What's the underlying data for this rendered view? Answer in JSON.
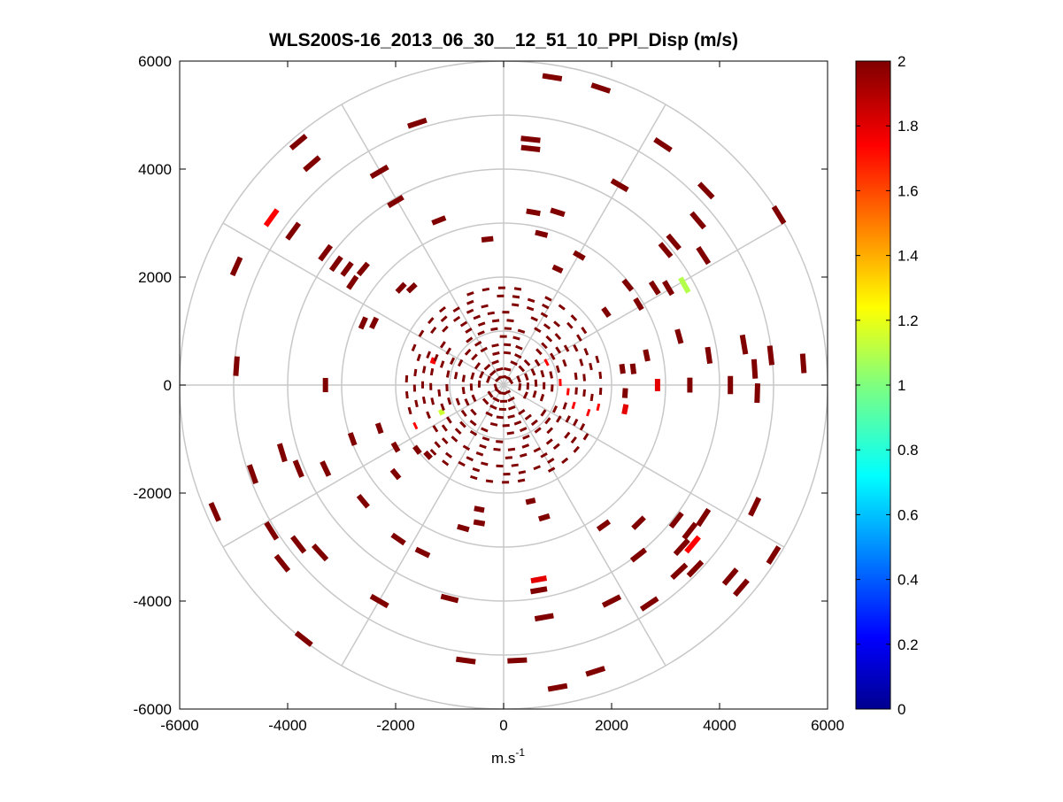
{
  "chart_data": {
    "type": "scatter",
    "subtype": "polar-ppi",
    "title": "WLS200S-16_2013_06_30__12_51_10_PPI_Disp (m/s)",
    "xlabel": "m.s",
    "xlabel_sup": "-1",
    "ylabel": "",
    "xlim": [
      -6000,
      6000
    ],
    "ylim": [
      -6000,
      6000
    ],
    "xticks": [
      "-6000",
      "-4000",
      "-2000",
      "0",
      "2000",
      "4000",
      "6000"
    ],
    "yticks": [
      "6000",
      "4000",
      "2000",
      "0",
      "-2000",
      "-4000",
      "-6000"
    ],
    "range_rings": [
      1000,
      2000,
      3000,
      4000,
      5000,
      6000
    ],
    "spokes_deg": [
      0,
      30,
      60,
      90,
      120,
      150,
      180,
      210,
      240,
      270,
      300,
      330
    ],
    "grid": true,
    "colorbar": {
      "min": 0,
      "max": 2,
      "colormap": "jet",
      "ticks": [
        "2",
        "1.8",
        "1.6",
        "1.4",
        "1.2",
        "1",
        "0.8",
        "0.6",
        "0.4",
        "0.2",
        "0"
      ]
    },
    "points": [
      {
        "x": 900,
        "y": 5700,
        "v": 2
      },
      {
        "x": 1800,
        "y": 5500,
        "v": 2
      },
      {
        "x": -1600,
        "y": 4850,
        "v": 2
      },
      {
        "x": 500,
        "y": 4550,
        "v": 2
      },
      {
        "x": 500,
        "y": 4380,
        "v": 2
      },
      {
        "x": 2950,
        "y": 4450,
        "v": 2
      },
      {
        "x": -3800,
        "y": 4500,
        "v": 2
      },
      {
        "x": -3550,
        "y": 4100,
        "v": 2
      },
      {
        "x": -2300,
        "y": 3950,
        "v": 2
      },
      {
        "x": 2150,
        "y": 3700,
        "v": 2
      },
      {
        "x": 3750,
        "y": 3600,
        "v": 2
      },
      {
        "x": -2000,
        "y": 3400,
        "v": 2
      },
      {
        "x": 550,
        "y": 3200,
        "v": 2
      },
      {
        "x": 1000,
        "y": 3200,
        "v": 2
      },
      {
        "x": -1200,
        "y": 3050,
        "v": 2
      },
      {
        "x": 3600,
        "y": 3050,
        "v": 2
      },
      {
        "x": 5100,
        "y": 3150,
        "v": 2
      },
      {
        "x": -4300,
        "y": 3100,
        "v": 1.75
      },
      {
        "x": -3900,
        "y": 2850,
        "v": 2
      },
      {
        "x": -300,
        "y": 2700,
        "v": 2
      },
      {
        "x": 700,
        "y": 2800,
        "v": 2
      },
      {
        "x": 3150,
        "y": 2650,
        "v": 2
      },
      {
        "x": 3000,
        "y": 2500,
        "v": 2
      },
      {
        "x": 3700,
        "y": 2400,
        "v": 2
      },
      {
        "x": -3300,
        "y": 2450,
        "v": 2
      },
      {
        "x": -4950,
        "y": 2200,
        "v": 2
      },
      {
        "x": -3100,
        "y": 2250,
        "v": 2
      },
      {
        "x": -2900,
        "y": 2150,
        "v": 2
      },
      {
        "x": -2600,
        "y": 2150,
        "v": 2
      },
      {
        "x": -2800,
        "y": 1900,
        "v": 2
      },
      {
        "x": -1900,
        "y": 1800,
        "v": 2
      },
      {
        "x": -1700,
        "y": 1800,
        "v": 2
      },
      {
        "x": 1400,
        "y": 2400,
        "v": 2
      },
      {
        "x": 1000,
        "y": 2150,
        "v": 2
      },
      {
        "x": 2300,
        "y": 1850,
        "v": 2
      },
      {
        "x": 2800,
        "y": 1800,
        "v": 2
      },
      {
        "x": 3350,
        "y": 1850,
        "v": 1.1
      },
      {
        "x": 3050,
        "y": 1800,
        "v": 2
      },
      {
        "x": 2500,
        "y": 1500,
        "v": 2
      },
      {
        "x": 1900,
        "y": 1350,
        "v": 2
      },
      {
        "x": -2600,
        "y": 1150,
        "v": 2
      },
      {
        "x": -2400,
        "y": 1150,
        "v": 2
      },
      {
        "x": 3250,
        "y": 900,
        "v": 2
      },
      {
        "x": 4450,
        "y": 750,
        "v": 2
      },
      {
        "x": 4950,
        "y": 550,
        "v": 2
      },
      {
        "x": 2650,
        "y": 550,
        "v": 2
      },
      {
        "x": 3800,
        "y": 550,
        "v": 2
      },
      {
        "x": -4950,
        "y": 350,
        "v": 2
      },
      {
        "x": 5550,
        "y": 400,
        "v": 2
      },
      {
        "x": 4650,
        "y": 300,
        "v": 2
      },
      {
        "x": 2200,
        "y": 300,
        "v": 2
      },
      {
        "x": 2400,
        "y": 300,
        "v": 2
      },
      {
        "x": 3450,
        "y": 0,
        "v": 2
      },
      {
        "x": 4200,
        "y": 0,
        "v": 2
      },
      {
        "x": 2850,
        "y": 0,
        "v": 1.8
      },
      {
        "x": 2250,
        "y": -150,
        "v": 2
      },
      {
        "x": 4700,
        "y": -150,
        "v": 2
      },
      {
        "x": 2250,
        "y": -450,
        "v": 1.8
      },
      {
        "x": -3300,
        "y": 0,
        "v": 2
      },
      {
        "x": -2300,
        "y": -800,
        "v": 2
      },
      {
        "x": -2800,
        "y": -1000,
        "v": 2
      },
      {
        "x": -2000,
        "y": -1150,
        "v": 2
      },
      {
        "x": -1600,
        "y": -1200,
        "v": 2
      },
      {
        "x": -1400,
        "y": -1300,
        "v": 2
      },
      {
        "x": -4100,
        "y": -1250,
        "v": 2
      },
      {
        "x": -3800,
        "y": -1550,
        "v": 2
      },
      {
        "x": -3300,
        "y": -1550,
        "v": 2
      },
      {
        "x": -4650,
        "y": -1650,
        "v": 2
      },
      {
        "x": -2000,
        "y": -1650,
        "v": 2
      },
      {
        "x": -2600,
        "y": -2150,
        "v": 2
      },
      {
        "x": -5350,
        "y": -2350,
        "v": 2
      },
      {
        "x": -4300,
        "y": -2700,
        "v": 2
      },
      {
        "x": -3800,
        "y": -2950,
        "v": 2
      },
      {
        "x": -4100,
        "y": -3300,
        "v": 2
      },
      {
        "x": -3400,
        "y": -3100,
        "v": 2
      },
      {
        "x": -1950,
        "y": -2850,
        "v": 2
      },
      {
        "x": -1500,
        "y": -3100,
        "v": 2
      },
      {
        "x": -750,
        "y": -2650,
        "v": 2
      },
      {
        "x": -450,
        "y": -2300,
        "v": 2
      },
      {
        "x": -450,
        "y": -2550,
        "v": 2
      },
      {
        "x": 500,
        "y": -2150,
        "v": 2
      },
      {
        "x": 750,
        "y": -2450,
        "v": 2
      },
      {
        "x": 1850,
        "y": -2600,
        "v": 2
      },
      {
        "x": 2500,
        "y": -2550,
        "v": 2
      },
      {
        "x": 3200,
        "y": -2500,
        "v": 2
      },
      {
        "x": 3700,
        "y": -2450,
        "v": 2
      },
      {
        "x": 3450,
        "y": -2700,
        "v": 2
      },
      {
        "x": 3300,
        "y": -3000,
        "v": 2
      },
      {
        "x": 3500,
        "y": -2950,
        "v": 1.75
      },
      {
        "x": 4650,
        "y": -2250,
        "v": 2
      },
      {
        "x": 5000,
        "y": -3150,
        "v": 2
      },
      {
        "x": 2500,
        "y": -3150,
        "v": 2
      },
      {
        "x": 3250,
        "y": -3450,
        "v": 2
      },
      {
        "x": 3550,
        "y": -3400,
        "v": 2
      },
      {
        "x": 4200,
        "y": -3550,
        "v": 2
      },
      {
        "x": 4400,
        "y": -3750,
        "v": 2
      },
      {
        "x": 650,
        "y": -3600,
        "v": 1.8
      },
      {
        "x": 650,
        "y": -3800,
        "v": 2
      },
      {
        "x": 2000,
        "y": -4000,
        "v": 2
      },
      {
        "x": 2700,
        "y": -4050,
        "v": 2
      },
      {
        "x": -2300,
        "y": -4000,
        "v": 2
      },
      {
        "x": -1000,
        "y": -3950,
        "v": 2
      },
      {
        "x": 750,
        "y": -4300,
        "v": 2
      },
      {
        "x": -3700,
        "y": -4700,
        "v": 2
      },
      {
        "x": -700,
        "y": -5100,
        "v": 2
      },
      {
        "x": 250,
        "y": -5100,
        "v": 2
      },
      {
        "x": 1700,
        "y": -5300,
        "v": 2
      },
      {
        "x": 1000,
        "y": -5600,
        "v": 2
      },
      {
        "x": -1150,
        "y": -500,
        "v": 1.15
      },
      {
        "x": -1300,
        "y": 450,
        "v": 1.75
      }
    ]
  }
}
